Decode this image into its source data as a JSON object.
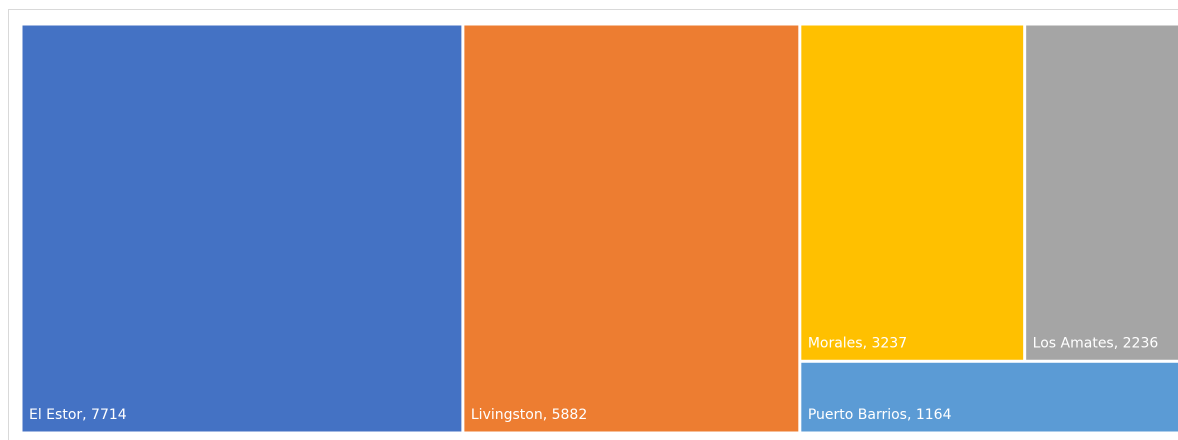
{
  "chart_data": {
    "type": "treemap",
    "values": [
      7714,
      5882,
      3237,
      2236,
      1164
    ],
    "value_labels": [
      "El Estor, 7714",
      "Livingston, 5882",
      "Morales, 3237",
      "Los Amates, 2236",
      "Puerto Barrios, 1164"
    ],
    "colors": [
      "#4472c4",
      "#ed7d31",
      "#ffc000",
      "#a5a5a5",
      "#5b9bd5"
    ]
  }
}
